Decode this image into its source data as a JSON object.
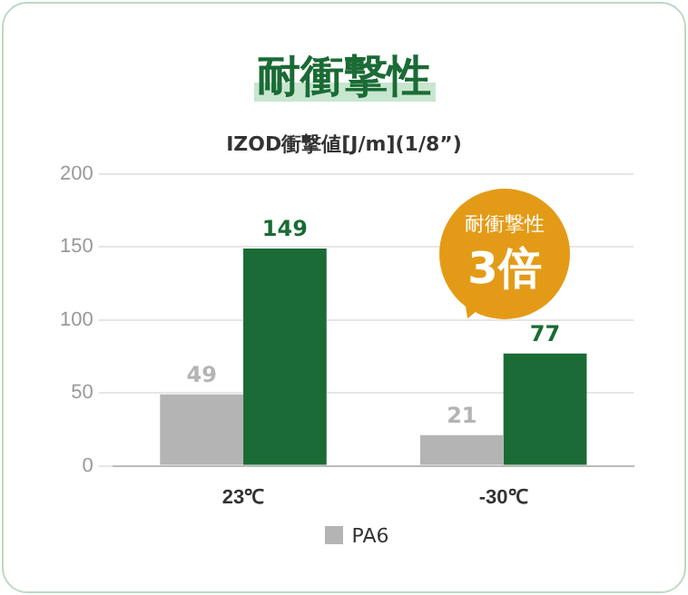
{
  "chart_data": {
    "type": "bar",
    "title": "耐衝撃性",
    "subtitle": "IZOD衝撃値[J/m](1/8”)",
    "categories": [
      "23℃",
      "-30℃"
    ],
    "series": [
      {
        "name": "PA6",
        "color": "#b4b4b4",
        "values": [
          49,
          21
        ]
      },
      {
        "color": "#1a6b35",
        "values": [
          149,
          77
        ]
      }
    ],
    "ylim": [
      0,
      200
    ],
    "yticks": [
      0,
      50,
      100,
      150,
      200
    ],
    "grid": "y",
    "data_labels": true,
    "legend": "bottom",
    "annotations": [
      "耐衝撃性",
      "3倍"
    ]
  }
}
